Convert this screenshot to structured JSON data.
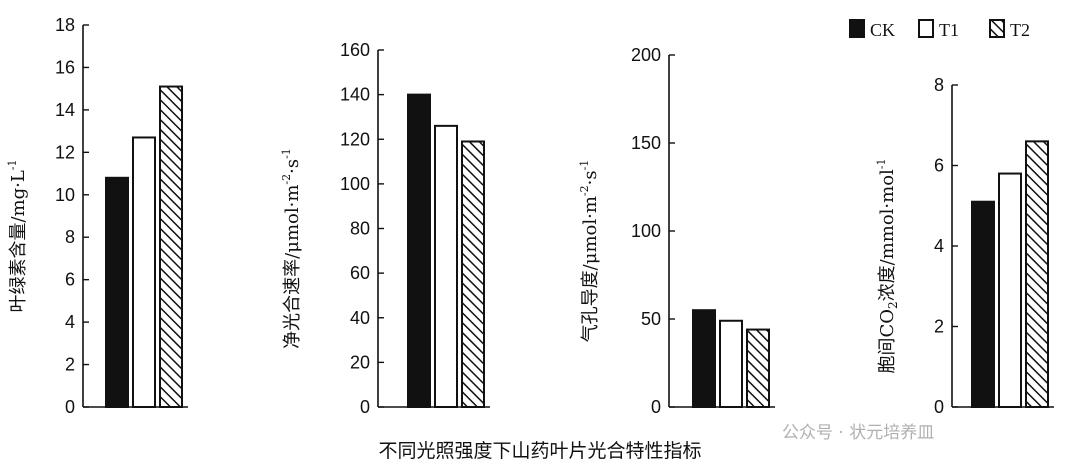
{
  "caption": "不同光照强度下山药叶片光合特性指标",
  "watermark": "公众号 · 状元培养皿",
  "legend": {
    "position": "top-right"
  },
  "chart_data": [
    {
      "type": "bar",
      "ylabel": {
        "text": "叶绿素含量/mg·L",
        "sup": "-1"
      },
      "ylim": [
        0,
        18
      ],
      "yticks": [
        "0",
        "2",
        "4",
        "6",
        "8",
        "10",
        "12",
        "14",
        "16",
        "18"
      ],
      "series": [
        {
          "name": "CK",
          "values": [
            10.8
          ]
        },
        {
          "name": "T1",
          "values": [
            12.7
          ]
        },
        {
          "name": "T2",
          "values": [
            15.1
          ]
        }
      ]
    },
    {
      "type": "bar",
      "ylabel": {
        "text": "净光合速率/μmol·m",
        "sup": "-2",
        "mid": "·s",
        "sup2": "-1"
      },
      "ylim": [
        0,
        160
      ],
      "yticks": [
        "0",
        "20",
        "40",
        "60",
        "80",
        "100",
        "120",
        "140",
        "160"
      ],
      "series": [
        {
          "name": "CK",
          "values": [
            140
          ]
        },
        {
          "name": "T1",
          "values": [
            126
          ]
        },
        {
          "name": "T2",
          "values": [
            119
          ]
        }
      ]
    },
    {
      "type": "bar",
      "ylabel": {
        "text": "气孔导度/μmol·m",
        "sup": "-2",
        "mid": "·s",
        "sup2": "-1"
      },
      "ylim": [
        0,
        200
      ],
      "yticks": [
        "0",
        "50",
        "100",
        "150",
        "200"
      ],
      "series": [
        {
          "name": "CK",
          "values": [
            55
          ]
        },
        {
          "name": "T1",
          "values": [
            49
          ]
        },
        {
          "name": "T2",
          "values": [
            44
          ]
        }
      ]
    },
    {
      "type": "bar",
      "ylabel": {
        "text": "胞间CO",
        "sub": "2",
        "rest": "浓度/mmol·mol",
        "sup": "-1"
      },
      "ylim": [
        0,
        8
      ],
      "yticks": [
        "0",
        "2",
        "4",
        "6",
        "8"
      ],
      "series": [
        {
          "name": "CK",
          "values": [
            5.1
          ]
        },
        {
          "name": "T1",
          "values": [
            5.8
          ]
        },
        {
          "name": "T2",
          "values": [
            6.6
          ]
        }
      ]
    }
  ]
}
